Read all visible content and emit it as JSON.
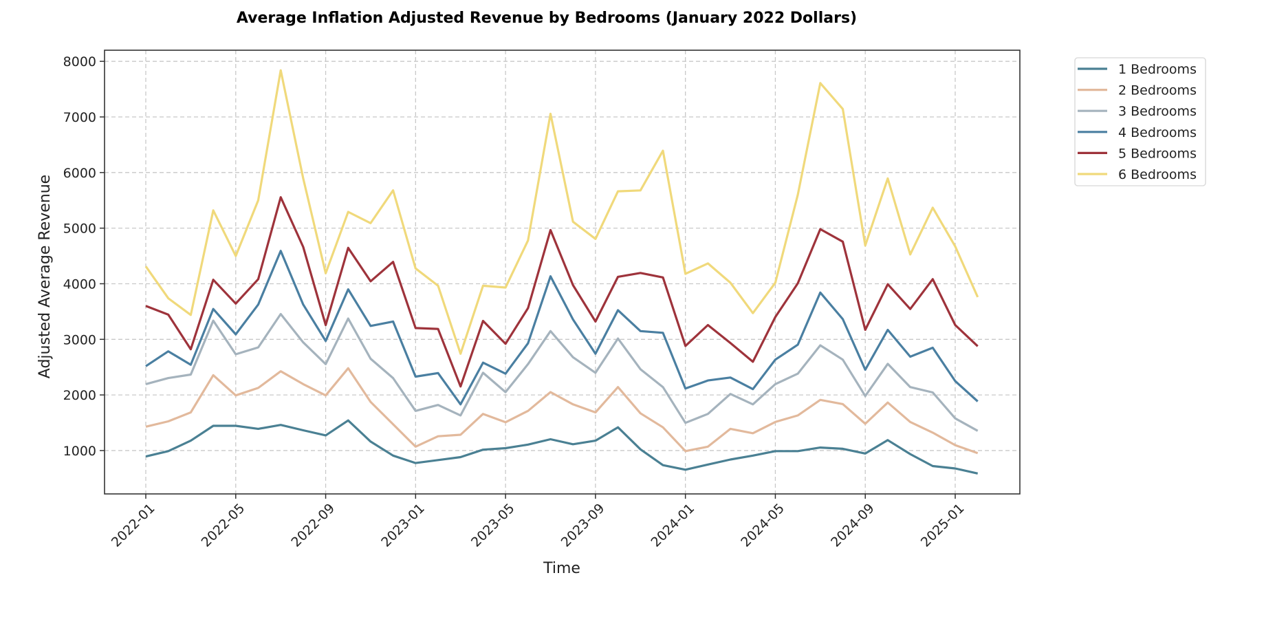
{
  "chart_data": {
    "type": "line",
    "title": "Average Inflation Adjusted Revenue by Bedrooms (January 2022 Dollars)",
    "xlabel": "Time",
    "ylabel": "Adjusted Average Revenue",
    "x": [
      "2022-01",
      "2022-02",
      "2022-03",
      "2022-04",
      "2022-05",
      "2022-06",
      "2022-07",
      "2022-08",
      "2022-09",
      "2022-10",
      "2022-11",
      "2022-12",
      "2023-01",
      "2023-02",
      "2023-03",
      "2023-04",
      "2023-05",
      "2023-06",
      "2023-07",
      "2023-08",
      "2023-09",
      "2023-10",
      "2023-11",
      "2023-12",
      "2024-01",
      "2024-02",
      "2024-03",
      "2024-04",
      "2024-05",
      "2024-06",
      "2024-07",
      "2024-08",
      "2024-09",
      "2024-10",
      "2024-11",
      "2024-12",
      "2025-01",
      "2025-02"
    ],
    "xticks": [
      "2022-01",
      "2022-05",
      "2022-09",
      "2023-01",
      "2023-05",
      "2023-09",
      "2024-01",
      "2024-05",
      "2024-09",
      "2025-01"
    ],
    "yticks": [
      1000,
      2000,
      3000,
      4000,
      5000,
      6000,
      7000,
      8000
    ],
    "ylim": [
      220,
      8200
    ],
    "grid": true,
    "legend_position": "outside-top-right",
    "series": [
      {
        "name": "1 Bedrooms",
        "color": "#4a8093",
        "values": [
          893,
          990,
          1177,
          1445,
          1445,
          1391,
          1461,
          1364,
          1273,
          1541,
          1161,
          909,
          775,
          829,
          882,
          1016,
          1043,
          1107,
          1204,
          1113,
          1177,
          1418,
          1022,
          737,
          656,
          748,
          839,
          909,
          989,
          989,
          1054,
          1032,
          946,
          1188,
          936,
          721,
          678,
          587
        ]
      },
      {
        "name": "2 Bedrooms",
        "color": "#e2b99c",
        "values": [
          1429,
          1525,
          1686,
          2356,
          1992,
          2126,
          2426,
          2195,
          1992,
          2480,
          1874,
          1472,
          1070,
          1257,
          1284,
          1659,
          1509,
          1713,
          2051,
          1831,
          1686,
          2142,
          1670,
          1418,
          989,
          1070,
          1391,
          1311,
          1514,
          1632,
          1911,
          1836,
          1482,
          1863,
          1514,
          1322,
          1097,
          952
        ]
      },
      {
        "name": "3 Bedrooms",
        "color": "#a5b3bd",
        "values": [
          2195,
          2303,
          2367,
          3337,
          2731,
          2855,
          3455,
          2946,
          2554,
          3374,
          2651,
          2303,
          1713,
          1820,
          1632,
          2399,
          2051,
          2554,
          3149,
          2678,
          2399,
          3015,
          2463,
          2142,
          1498,
          1659,
          2018,
          1831,
          2195,
          2383,
          2892,
          2635,
          1981,
          2560,
          2142,
          2045,
          1579,
          1354
        ]
      },
      {
        "name": "4 Bedrooms",
        "color": "#4a7fa1",
        "values": [
          2517,
          2785,
          2544,
          3546,
          3090,
          3626,
          4591,
          3626,
          2972,
          3900,
          3241,
          3321,
          2329,
          2394,
          1831,
          2581,
          2383,
          2930,
          4135,
          3358,
          2742,
          3525,
          3149,
          3117,
          2115,
          2260,
          2313,
          2104,
          2635,
          2903,
          3841,
          3364,
          2453,
          3171,
          2688,
          2849,
          2249,
          1884
        ]
      },
      {
        "name": "5 Bedrooms",
        "color": "#9e333b",
        "values": [
          3600,
          3444,
          2822,
          4071,
          3643,
          4082,
          5556,
          4661,
          3257,
          4645,
          4044,
          4393,
          3203,
          3187,
          2152,
          3331,
          2919,
          3562,
          4966,
          3975,
          3321,
          4125,
          4194,
          4114,
          2881,
          3257,
          2935,
          2597,
          3401,
          4007,
          4982,
          4757,
          3171,
          3991,
          3546,
          4082,
          3257,
          2876
        ]
      },
      {
        "name": "6 Bedrooms",
        "color": "#f0d97b",
        "values": [
          4313,
          3739,
          3439,
          5320,
          4500,
          5502,
          7839,
          5894,
          4189,
          5293,
          5090,
          5680,
          4275,
          3964,
          2742,
          3964,
          3932,
          4779,
          7057,
          5116,
          4806,
          5663,
          5679,
          6392,
          4178,
          4366,
          4018,
          3471,
          4018,
          5599,
          7609,
          7143,
          4688,
          5894,
          4527,
          5368,
          4672,
          3760
        ]
      }
    ]
  }
}
